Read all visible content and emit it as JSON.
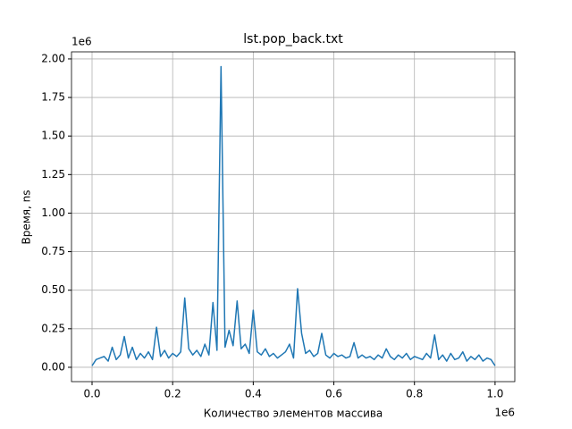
{
  "chart_data": {
    "type": "line",
    "title": "lst.pop_back.txt",
    "xlabel": "Количество элементов массива",
    "ylabel": "Время, ns",
    "x_offset_label": "1e6",
    "y_offset_label": "1e6",
    "color": "#1f77b4",
    "grid": true,
    "xlim": [
      -0.051,
      1.049
    ],
    "ylim": [
      -0.093,
      2.046
    ],
    "xticks": [
      {
        "value": 0,
        "label": "0.0"
      },
      {
        "value": 0.2,
        "label": "0.2"
      },
      {
        "value": 0.4,
        "label": "0.4"
      },
      {
        "value": 0.6,
        "label": "0.6"
      },
      {
        "value": 0.8,
        "label": "0.8"
      },
      {
        "value": 1,
        "label": "1.0"
      }
    ],
    "yticks": [
      {
        "value": 0,
        "label": "0.00"
      },
      {
        "value": 0.25,
        "label": "0.25"
      },
      {
        "value": 0.5,
        "label": "0.50"
      },
      {
        "value": 0.75,
        "label": "0.75"
      },
      {
        "value": 1,
        "label": "1.00"
      },
      {
        "value": 1.25,
        "label": "1.25"
      },
      {
        "value": 1.5,
        "label": "1.50"
      },
      {
        "value": 1.75,
        "label": "1.75"
      },
      {
        "value": 2,
        "label": "2.00"
      }
    ],
    "x": [
      0,
      0.01,
      0.02,
      0.03,
      0.04,
      0.05,
      0.06,
      0.07,
      0.08,
      0.09,
      0.1,
      0.11,
      0.12,
      0.13,
      0.14,
      0.15,
      0.16,
      0.17,
      0.18,
      0.19,
      0.2,
      0.21,
      0.22,
      0.23,
      0.24,
      0.25,
      0.26,
      0.27,
      0.28,
      0.29,
      0.3,
      0.31,
      0.32,
      0.33,
      0.34,
      0.35,
      0.36,
      0.37,
      0.38,
      0.39,
      0.4,
      0.41,
      0.42,
      0.43,
      0.44,
      0.45,
      0.46,
      0.47,
      0.48,
      0.49,
      0.5,
      0.51,
      0.52,
      0.53,
      0.54,
      0.55,
      0.56,
      0.57,
      0.58,
      0.59,
      0.6,
      0.61,
      0.62,
      0.63,
      0.64,
      0.65,
      0.66,
      0.67,
      0.68,
      0.69,
      0.7,
      0.71,
      0.72,
      0.73,
      0.74,
      0.75,
      0.76,
      0.77,
      0.78,
      0.79,
      0.8,
      0.81,
      0.82,
      0.83,
      0.84,
      0.85,
      0.86,
      0.87,
      0.88,
      0.89,
      0.9,
      0.91,
      0.92,
      0.93,
      0.94,
      0.95,
      0.96,
      0.97,
      0.98,
      0.99,
      1
    ],
    "values": [
      0.01,
      0.05,
      0.06,
      0.07,
      0.04,
      0.13,
      0.05,
      0.08,
      0.2,
      0.06,
      0.13,
      0.05,
      0.09,
      0.06,
      0.1,
      0.05,
      0.26,
      0.07,
      0.11,
      0.06,
      0.09,
      0.07,
      0.1,
      0.45,
      0.12,
      0.08,
      0.11,
      0.07,
      0.15,
      0.08,
      0.42,
      0.11,
      1.95,
      0.13,
      0.24,
      0.14,
      0.43,
      0.12,
      0.15,
      0.09,
      0.37,
      0.1,
      0.08,
      0.12,
      0.07,
      0.09,
      0.06,
      0.08,
      0.1,
      0.15,
      0.06,
      0.51,
      0.22,
      0.09,
      0.11,
      0.07,
      0.09,
      0.22,
      0.08,
      0.06,
      0.09,
      0.07,
      0.08,
      0.06,
      0.07,
      0.16,
      0.06,
      0.08,
      0.06,
      0.07,
      0.05,
      0.08,
      0.06,
      0.12,
      0.07,
      0.05,
      0.08,
      0.06,
      0.09,
      0.05,
      0.07,
      0.06,
      0.05,
      0.09,
      0.06,
      0.21,
      0.05,
      0.08,
      0.04,
      0.09,
      0.05,
      0.06,
      0.1,
      0.04,
      0.07,
      0.05,
      0.08,
      0.04,
      0.06,
      0.05,
      0.01
    ]
  }
}
